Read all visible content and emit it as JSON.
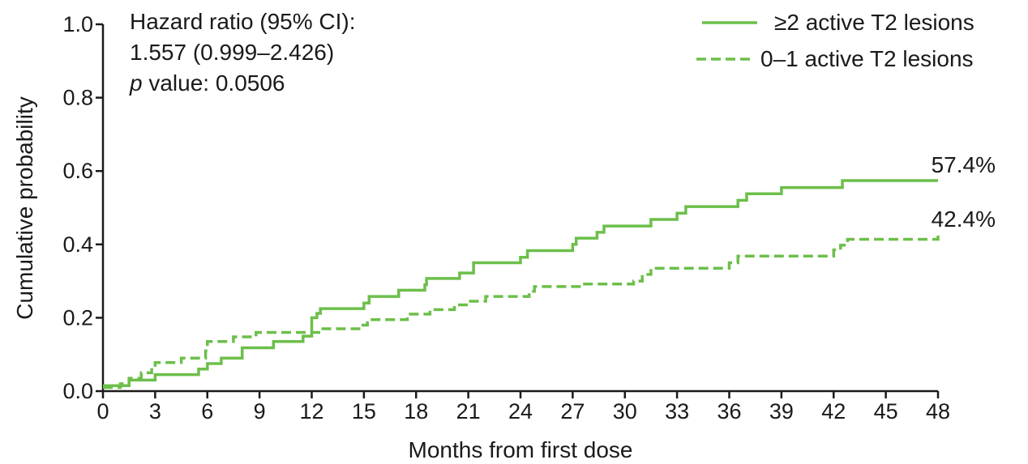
{
  "chart_data": {
    "type": "line",
    "xlabel": "Months from first dose",
    "ylabel": "Cumulative probability",
    "xlim": [
      0,
      48
    ],
    "ylim": [
      0,
      1.0
    ],
    "x_ticks": [
      "0",
      "3",
      "6",
      "9",
      "12",
      "15",
      "18",
      "21",
      "24",
      "27",
      "30",
      "33",
      "36",
      "39",
      "42",
      "45",
      "48"
    ],
    "y_ticks": [
      "0.0",
      "0.2",
      "0.4",
      "0.6",
      "0.8",
      "1.0"
    ],
    "grid": false,
    "legend_position": "top-right",
    "annotation": {
      "line1": "Hazard ratio (95% CI):",
      "line2": "1.557 (0.999–2.426)",
      "line3_italic": "p",
      "line3_rest": " value: 0.0506"
    },
    "series": [
      {
        "name": "≥2 active T2 lesions",
        "style": "solid",
        "color": "#6cbf4a",
        "end_label": "57.4%",
        "points": [
          [
            0,
            0.015
          ],
          [
            1.5,
            0.03
          ],
          [
            3,
            0.045
          ],
          [
            5.5,
            0.06
          ],
          [
            6,
            0.075
          ],
          [
            6.8,
            0.09
          ],
          [
            8,
            0.118
          ],
          [
            9.8,
            0.135
          ],
          [
            11.5,
            0.15
          ],
          [
            12,
            0.2
          ],
          [
            12.3,
            0.212
          ],
          [
            12.5,
            0.225
          ],
          [
            15,
            0.24
          ],
          [
            15.3,
            0.258
          ],
          [
            17,
            0.275
          ],
          [
            18.5,
            0.29
          ],
          [
            18.6,
            0.307
          ],
          [
            20.5,
            0.322
          ],
          [
            21.3,
            0.35
          ],
          [
            24,
            0.365
          ],
          [
            24.4,
            0.383
          ],
          [
            27,
            0.4
          ],
          [
            27.2,
            0.417
          ],
          [
            28.4,
            0.433
          ],
          [
            28.8,
            0.45
          ],
          [
            31.5,
            0.468
          ],
          [
            33,
            0.485
          ],
          [
            33.5,
            0.503
          ],
          [
            36.5,
            0.52
          ],
          [
            37,
            0.538
          ],
          [
            39,
            0.555
          ],
          [
            42.5,
            0.574
          ],
          [
            48,
            0.574
          ]
        ]
      },
      {
        "name": "0–1 active T2 lesions",
        "style": "dashed",
        "color": "#6cbf4a",
        "end_label": "42.4%",
        "points": [
          [
            0,
            0.01
          ],
          [
            1,
            0.02
          ],
          [
            1.5,
            0.035
          ],
          [
            2.2,
            0.05
          ],
          [
            2.8,
            0.065
          ],
          [
            3,
            0.078
          ],
          [
            4.5,
            0.09
          ],
          [
            5.9,
            0.11
          ],
          [
            6,
            0.135
          ],
          [
            7.5,
            0.148
          ],
          [
            8.8,
            0.16
          ],
          [
            12.2,
            0.16
          ],
          [
            12.5,
            0.17
          ],
          [
            14.8,
            0.18
          ],
          [
            15.2,
            0.195
          ],
          [
            17.5,
            0.21
          ],
          [
            18.8,
            0.222
          ],
          [
            20.2,
            0.235
          ],
          [
            21,
            0.245
          ],
          [
            22,
            0.258
          ],
          [
            24.5,
            0.272
          ],
          [
            24.8,
            0.285
          ],
          [
            27.5,
            0.292
          ],
          [
            30.5,
            0.3
          ],
          [
            31,
            0.318
          ],
          [
            31.5,
            0.335
          ],
          [
            36,
            0.35
          ],
          [
            36.5,
            0.368
          ],
          [
            42,
            0.385
          ],
          [
            42.4,
            0.398
          ],
          [
            42.8,
            0.414
          ],
          [
            48,
            0.424
          ]
        ]
      }
    ]
  }
}
